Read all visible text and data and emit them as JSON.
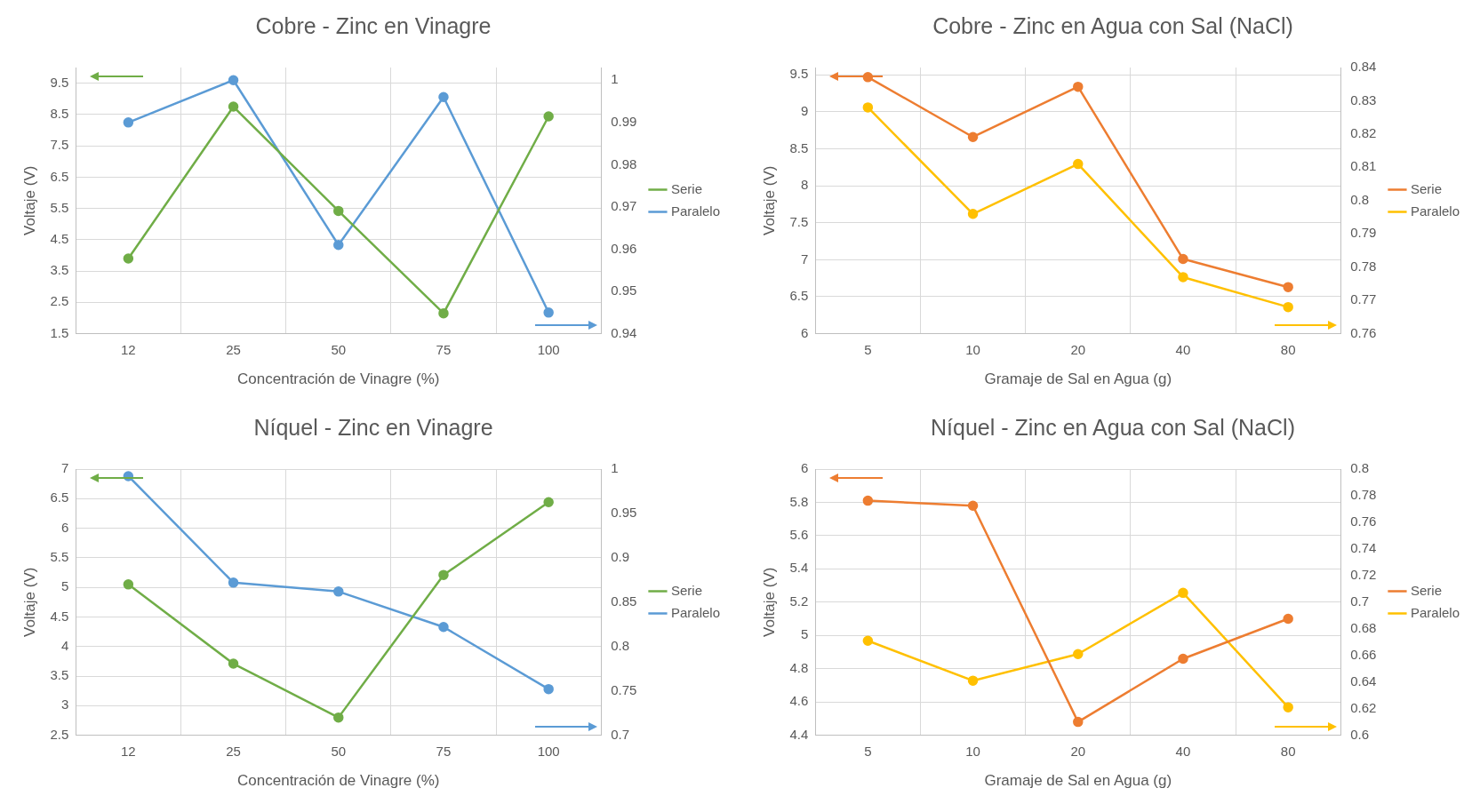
{
  "chart_data": [
    {
      "type": "line",
      "title": "Cobre - Zinc en Vinagre",
      "xlabel": "Concentración de Vinagre (%)",
      "ylabel": "Voltaje (V)",
      "categories": [
        "12",
        "25",
        "50",
        "75",
        "100"
      ],
      "series": [
        {
          "name": "Serie",
          "color": "#70ad47",
          "values": [
            3.9,
            8.75,
            5.42,
            2.15,
            8.44
          ]
        },
        {
          "name": "Paralelo",
          "color": "#5b9bd5",
          "axis": "y2",
          "values": [
            0.99,
            1.0,
            0.961,
            0.996,
            0.945
          ]
        }
      ],
      "ylim": [
        1.5,
        10
      ],
      "yticks": [
        1.5,
        2.5,
        3.5,
        4.5,
        5.5,
        6.5,
        7.5,
        8.5,
        9.5
      ],
      "y2lim": [
        0.94,
        1.003
      ],
      "y2ticks": [
        0.94,
        0.95,
        0.96,
        0.97,
        0.98,
        0.99,
        1
      ],
      "grid": true,
      "legend": "right",
      "marker": "circle",
      "line_style": "solid"
    },
    {
      "type": "line",
      "title": "Cobre - Zinc en Agua con Sal (NaCl)",
      "xlabel": "Gramaje de Sal en Agua (g)",
      "ylabel": "Voltaje (V)",
      "categories": [
        "5",
        "10",
        "20",
        "40",
        "80"
      ],
      "series": [
        {
          "name": "Serie",
          "color": "#ed7d31",
          "values": [
            9.47,
            8.66,
            9.34,
            7.01,
            6.63
          ]
        },
        {
          "name": "Paralelo",
          "color": "#ffc000",
          "axis": "y2",
          "values": [
            0.828,
            0.796,
            0.811,
            0.777,
            0.768
          ]
        }
      ],
      "ylim": [
        6,
        9.6
      ],
      "yticks": [
        6,
        6.5,
        7,
        7.5,
        8,
        8.5,
        9,
        9.5
      ],
      "y2lim": [
        0.76,
        0.84
      ],
      "y2ticks": [
        0.76,
        0.77,
        0.78,
        0.79,
        0.8,
        0.81,
        0.82,
        0.83,
        0.84
      ],
      "grid": true,
      "legend": "right",
      "marker": "circle",
      "line_style": "solid"
    },
    {
      "type": "line",
      "title": "Níquel - Zinc en Vinagre",
      "xlabel": "Concentración de Vinagre (%)",
      "ylabel": "Voltaje (V)",
      "categories": [
        "12",
        "25",
        "50",
        "75",
        "100"
      ],
      "series": [
        {
          "name": "Serie",
          "color": "#70ad47",
          "values": [
            5.05,
            3.71,
            2.8,
            5.21,
            6.44
          ]
        },
        {
          "name": "Paralelo",
          "color": "#5b9bd5",
          "axis": "y2",
          "values": [
            0.992,
            0.872,
            0.862,
            0.822,
            0.752
          ]
        }
      ],
      "ylim": [
        2.5,
        7
      ],
      "yticks": [
        2.5,
        3,
        3.5,
        4,
        4.5,
        5,
        5.5,
        6,
        6.5,
        7
      ],
      "y2lim": [
        0.7,
        1
      ],
      "y2ticks": [
        0.7,
        0.75,
        0.8,
        0.85,
        0.9,
        0.95,
        1
      ],
      "grid": true,
      "legend": "right",
      "marker": "circle",
      "line_style": "solid"
    },
    {
      "type": "line",
      "title": "Níquel - Zinc en Agua con Sal (NaCl)",
      "xlabel": "Gramaje de Sal en Agua (g)",
      "ylabel": "Voltaje (V)",
      "categories": [
        "5",
        "10",
        "20",
        "40",
        "80"
      ],
      "series": [
        {
          "name": "Serie",
          "color": "#ed7d31",
          "values": [
            5.81,
            5.78,
            4.48,
            4.86,
            5.1
          ]
        },
        {
          "name": "Paralelo",
          "color": "#ffc000",
          "axis": "y2",
          "values": [
            0.671,
            0.641,
            0.661,
            0.707,
            0.621
          ]
        }
      ],
      "ylim": [
        4.4,
        6
      ],
      "yticks": [
        4.4,
        4.6,
        4.8,
        5,
        5.2,
        5.4,
        5.6,
        5.8,
        6
      ],
      "y2lim": [
        0.6,
        0.8
      ],
      "y2ticks": [
        0.6,
        0.62,
        0.64,
        0.66,
        0.68,
        0.7,
        0.72,
        0.74,
        0.76,
        0.78,
        0.8
      ],
      "grid": true,
      "legend": "right",
      "marker": "circle",
      "line_style": "solid"
    }
  ]
}
